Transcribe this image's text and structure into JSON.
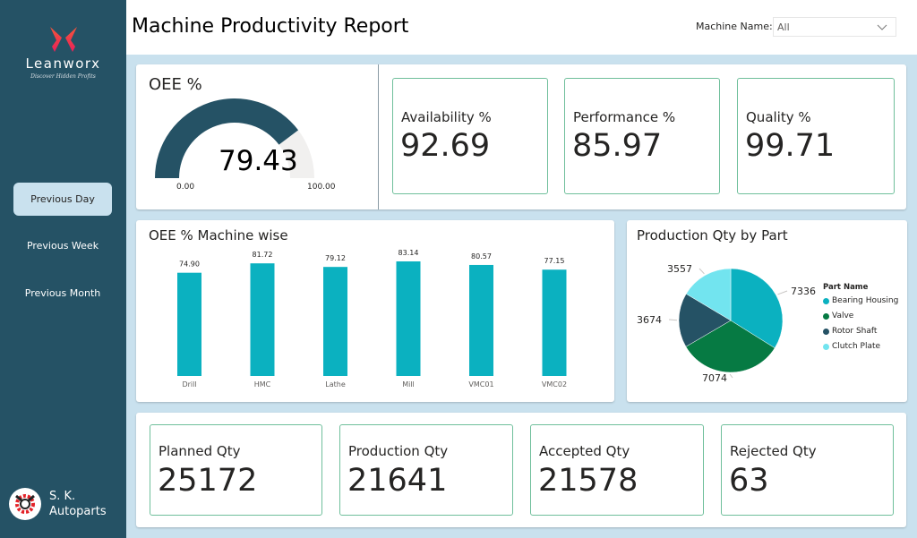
{
  "sidebar": {
    "brand": "Leanworx",
    "tagline": "Discover Hidden Profits",
    "nav": [
      {
        "label": "Previous Day",
        "active": true
      },
      {
        "label": "Previous Week",
        "active": false
      },
      {
        "label": "Previous Month",
        "active": false
      }
    ],
    "company_line1": "S. K.",
    "company_line2": "Autoparts"
  },
  "header": {
    "title": "Machine Productivity Report",
    "filter_label": "Machine Name:",
    "filter_value": "All"
  },
  "oee": {
    "title": "OEE %",
    "value": "79.43",
    "value_num": 79.43,
    "min": "0.00",
    "max": "100.00",
    "fill_color": "#255265",
    "track_color": "#f1f0ef"
  },
  "kpis_top": [
    {
      "label": "Availability %",
      "value": "92.69"
    },
    {
      "label": "Performance %",
      "value": "85.97"
    },
    {
      "label": "Quality %",
      "value": "99.71"
    }
  ],
  "kpis_bottom": [
    {
      "label": "Planned Qty",
      "value": "25172"
    },
    {
      "label": "Production Qty",
      "value": "21641"
    },
    {
      "label": "Accepted Qty",
      "value": "21578"
    },
    {
      "label": "Rejected Qty",
      "value": "63"
    }
  ],
  "chart_data": [
    {
      "type": "bar",
      "title": "OEE % Machine wise",
      "categories": [
        "Drill",
        "HMC",
        "Lathe",
        "Mill",
        "VMC01",
        "VMC02"
      ],
      "values": [
        74.9,
        81.72,
        79.12,
        83.14,
        80.57,
        77.15
      ],
      "labels": [
        "74.90",
        "81.72",
        "79.12",
        "83.14",
        "80.57",
        "77.15"
      ],
      "xlabel": "",
      "ylabel": "",
      "ylim": [
        0,
        83.14
      ],
      "grid": false,
      "color": "#0bb1c0"
    },
    {
      "type": "pie",
      "title": "Production Qty by Part",
      "legend_title": "Part Name",
      "legend_position": "right",
      "categories": [
        "Bearing Housing",
        "Valve",
        "Rotor Shaft",
        "Clutch Plate"
      ],
      "values": [
        7336,
        7074,
        3674,
        3557
      ],
      "colors": [
        "#0bb1c0",
        "#067a43",
        "#255265",
        "#72e4ef"
      ]
    }
  ]
}
